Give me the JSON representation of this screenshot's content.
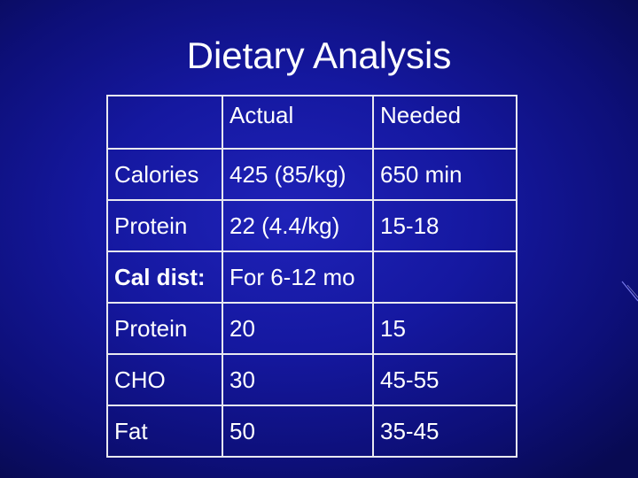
{
  "slide": {
    "title": "Dietary Analysis",
    "table": {
      "header": [
        "",
        "Actual",
        "Needed"
      ],
      "rows": [
        [
          "Calories",
          "425 (85/kg)",
          "650 min"
        ],
        [
          "Protein",
          "22 (4.4/kg)",
          "15-18"
        ]
      ],
      "subheader": {
        "label": "Cal dist:",
        "note": "For 6-12 mo"
      },
      "dist_rows": [
        [
          "Protein",
          "20",
          "15"
        ],
        [
          "CHO",
          "30",
          "45-55"
        ],
        [
          "Fat",
          "50",
          "35-45"
        ]
      ]
    },
    "colors": {
      "background_center": "#1f22b8",
      "background_edge": "#080a52",
      "text": "#ffffff",
      "border": "#e8e8f0"
    }
  }
}
